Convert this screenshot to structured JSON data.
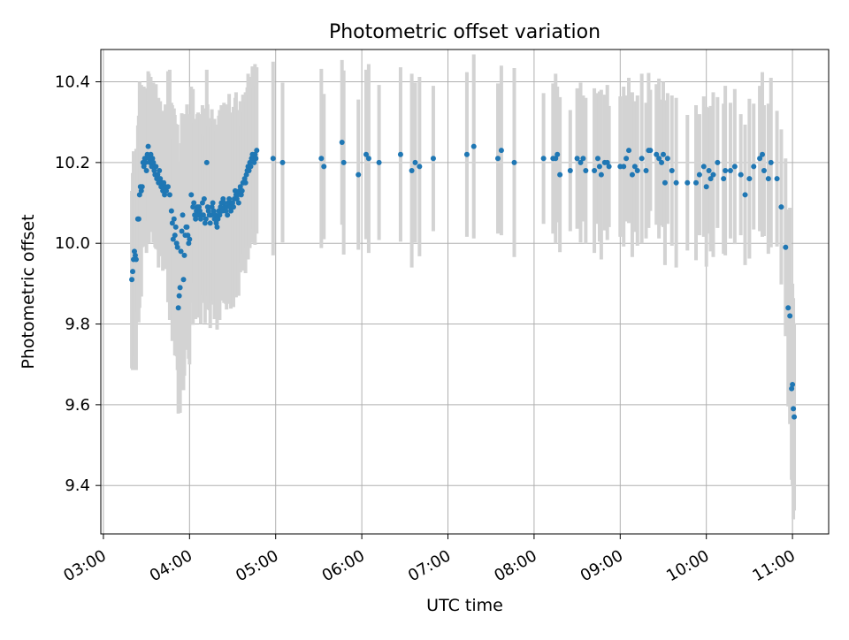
{
  "chart_data": {
    "type": "scatter",
    "title": "Photometric offset variation",
    "xlabel": "UTC time",
    "ylabel": "Photometric offset",
    "x_unit": "hours (UTC)",
    "xlim": [
      2.97,
      11.42
    ],
    "ylim": [
      9.28,
      10.48
    ],
    "grid": true,
    "colors": {
      "marker": "#1f77b4",
      "errorbar": "#d3d3d3",
      "grid": "#b0b0b0"
    },
    "x_ticks": [
      {
        "value": 3,
        "label": "03:00"
      },
      {
        "value": 4,
        "label": "04:00"
      },
      {
        "value": 5,
        "label": "05:00"
      },
      {
        "value": 6,
        "label": "06:00"
      },
      {
        "value": 7,
        "label": "07:00"
      },
      {
        "value": 8,
        "label": "08:00"
      },
      {
        "value": 9,
        "label": "09:00"
      },
      {
        "value": 10,
        "label": "10:00"
      },
      {
        "value": 11,
        "label": "11:00"
      }
    ],
    "y_ticks": [
      {
        "value": 9.4,
        "label": "9.4"
      },
      {
        "value": 9.6,
        "label": "9.6"
      },
      {
        "value": 9.8,
        "label": "9.8"
      },
      {
        "value": 10.0,
        "label": "10.0"
      },
      {
        "value": 10.2,
        "label": "10.2"
      },
      {
        "value": 10.4,
        "label": "10.4"
      }
    ],
    "series": [
      {
        "points": [
          [
            3.33,
            9.91
          ],
          [
            3.34,
            9.93
          ],
          [
            3.35,
            9.96
          ],
          [
            3.36,
            9.98
          ],
          [
            3.37,
            9.97
          ],
          [
            3.38,
            9.96
          ],
          [
            3.4,
            10.06
          ],
          [
            3.41,
            10.06
          ],
          [
            3.42,
            10.12
          ],
          [
            3.43,
            10.14
          ],
          [
            3.44,
            10.13
          ],
          [
            3.45,
            10.14
          ],
          [
            3.46,
            10.2
          ],
          [
            3.47,
            10.19
          ],
          [
            3.48,
            10.21
          ],
          [
            3.49,
            10.2
          ],
          [
            3.5,
            10.18
          ],
          [
            3.51,
            10.22
          ],
          [
            3.52,
            10.24
          ],
          [
            3.53,
            10.21
          ],
          [
            3.54,
            10.2
          ],
          [
            3.55,
            10.22
          ],
          [
            3.56,
            10.19
          ],
          [
            3.57,
            10.21
          ],
          [
            3.58,
            10.2
          ],
          [
            3.59,
            10.18
          ],
          [
            3.6,
            10.17
          ],
          [
            3.61,
            10.19
          ],
          [
            3.62,
            10.16
          ],
          [
            3.63,
            10.17
          ],
          [
            3.64,
            10.15
          ],
          [
            3.65,
            10.18
          ],
          [
            3.66,
            10.16
          ],
          [
            3.67,
            10.14
          ],
          [
            3.68,
            10.15
          ],
          [
            3.69,
            10.13
          ],
          [
            3.7,
            10.15
          ],
          [
            3.71,
            10.12
          ],
          [
            3.72,
            10.14
          ],
          [
            3.73,
            10.13
          ],
          [
            3.75,
            10.14
          ],
          [
            3.77,
            10.12
          ],
          [
            3.79,
            10.08
          ],
          [
            3.8,
            10.05
          ],
          [
            3.81,
            10.01
          ],
          [
            3.82,
            10.06
          ],
          [
            3.83,
            10.02
          ],
          [
            3.84,
            10.04
          ],
          [
            3.85,
            10.0
          ],
          [
            3.86,
            9.99
          ],
          [
            3.87,
            9.84
          ],
          [
            3.88,
            9.87
          ],
          [
            3.89,
            9.89
          ],
          [
            3.9,
            9.98
          ],
          [
            3.91,
            10.03
          ],
          [
            3.92,
            10.07
          ],
          [
            3.93,
            9.91
          ],
          [
            3.94,
            9.97
          ],
          [
            3.95,
            10.02
          ],
          [
            3.96,
            10.04
          ],
          [
            3.97,
            10.04
          ],
          [
            3.98,
            10.02
          ],
          [
            3.99,
            10.0
          ],
          [
            4.0,
            10.01
          ],
          [
            4.02,
            10.12
          ],
          [
            4.04,
            10.09
          ],
          [
            4.05,
            10.1
          ],
          [
            4.06,
            10.07
          ],
          [
            4.07,
            10.06
          ],
          [
            4.08,
            10.08
          ],
          [
            4.09,
            10.09
          ],
          [
            4.1,
            10.07
          ],
          [
            4.11,
            10.09
          ],
          [
            4.12,
            10.08
          ],
          [
            4.13,
            10.06
          ],
          [
            4.14,
            10.07
          ],
          [
            4.15,
            10.1
          ],
          [
            4.16,
            10.07
          ],
          [
            4.17,
            10.11
          ],
          [
            4.18,
            10.05
          ],
          [
            4.19,
            10.06
          ],
          [
            4.2,
            10.2
          ],
          [
            4.21,
            10.09
          ],
          [
            4.22,
            10.08
          ],
          [
            4.23,
            10.07
          ],
          [
            4.24,
            10.05
          ],
          [
            4.25,
            10.07
          ],
          [
            4.26,
            10.09
          ],
          [
            4.27,
            10.1
          ],
          [
            4.28,
            10.08
          ],
          [
            4.29,
            10.06
          ],
          [
            4.3,
            10.07
          ],
          [
            4.31,
            10.05
          ],
          [
            4.32,
            10.04
          ],
          [
            4.33,
            10.06
          ],
          [
            4.34,
            10.08
          ],
          [
            4.35,
            10.07
          ],
          [
            4.36,
            10.09
          ],
          [
            4.37,
            10.1
          ],
          [
            4.38,
            10.08
          ],
          [
            4.39,
            10.11
          ],
          [
            4.4,
            10.1
          ],
          [
            4.41,
            10.09
          ],
          [
            4.42,
            10.08
          ],
          [
            4.43,
            10.09
          ],
          [
            4.44,
            10.07
          ],
          [
            4.45,
            10.1
          ],
          [
            4.46,
            10.11
          ],
          [
            4.47,
            10.09
          ],
          [
            4.48,
            10.08
          ],
          [
            4.49,
            10.1
          ],
          [
            4.5,
            10.1
          ],
          [
            4.51,
            10.09
          ],
          [
            4.52,
            10.11
          ],
          [
            4.53,
            10.13
          ],
          [
            4.54,
            10.12
          ],
          [
            4.55,
            10.11
          ],
          [
            4.56,
            10.12
          ],
          [
            4.57,
            10.1
          ],
          [
            4.58,
            10.13
          ],
          [
            4.59,
            10.14
          ],
          [
            4.6,
            10.12
          ],
          [
            4.61,
            10.13
          ],
          [
            4.62,
            10.15
          ],
          [
            4.63,
            10.15
          ],
          [
            4.64,
            10.16
          ],
          [
            4.65,
            10.15
          ],
          [
            4.66,
            10.17
          ],
          [
            4.67,
            10.18
          ],
          [
            4.68,
            10.19
          ],
          [
            4.69,
            10.18
          ],
          [
            4.7,
            10.2
          ],
          [
            4.71,
            10.19
          ],
          [
            4.72,
            10.21
          ],
          [
            4.73,
            10.22
          ],
          [
            4.74,
            10.21
          ],
          [
            4.75,
            10.2
          ],
          [
            4.76,
            10.22
          ],
          [
            4.77,
            10.21
          ],
          [
            4.78,
            10.23
          ],
          [
            4.97,
            10.21
          ],
          [
            5.08,
            10.2
          ],
          [
            5.53,
            10.21
          ],
          [
            5.56,
            10.19
          ],
          [
            5.77,
            10.25
          ],
          [
            5.79,
            10.2
          ],
          [
            5.96,
            10.17
          ],
          [
            6.05,
            10.22
          ],
          [
            6.08,
            10.21
          ],
          [
            6.2,
            10.2
          ],
          [
            6.45,
            10.22
          ],
          [
            6.58,
            10.18
          ],
          [
            6.62,
            10.2
          ],
          [
            6.67,
            10.19
          ],
          [
            6.83,
            10.21
          ],
          [
            7.22,
            10.22
          ],
          [
            7.3,
            10.24
          ],
          [
            7.58,
            10.21
          ],
          [
            7.62,
            10.23
          ],
          [
            7.77,
            10.2
          ],
          [
            8.11,
            10.21
          ],
          [
            8.22,
            10.21
          ],
          [
            8.25,
            10.21
          ],
          [
            8.27,
            10.22
          ],
          [
            8.3,
            10.17
          ],
          [
            8.42,
            10.18
          ],
          [
            8.5,
            10.21
          ],
          [
            8.54,
            10.2
          ],
          [
            8.57,
            10.21
          ],
          [
            8.6,
            10.18
          ],
          [
            8.7,
            10.18
          ],
          [
            8.74,
            10.21
          ],
          [
            8.76,
            10.19
          ],
          [
            8.78,
            10.17
          ],
          [
            8.82,
            10.2
          ],
          [
            8.85,
            10.2
          ],
          [
            8.87,
            10.19
          ],
          [
            9.0,
            10.19
          ],
          [
            9.04,
            10.19
          ],
          [
            9.07,
            10.21
          ],
          [
            9.1,
            10.23
          ],
          [
            9.14,
            10.17
          ],
          [
            9.17,
            10.19
          ],
          [
            9.2,
            10.18
          ],
          [
            9.25,
            10.21
          ],
          [
            9.3,
            10.18
          ],
          [
            9.33,
            10.23
          ],
          [
            9.35,
            10.23
          ],
          [
            9.42,
            10.22
          ],
          [
            9.45,
            10.21
          ],
          [
            9.48,
            10.2
          ],
          [
            9.5,
            10.22
          ],
          [
            9.52,
            10.15
          ],
          [
            9.55,
            10.21
          ],
          [
            9.6,
            10.18
          ],
          [
            9.65,
            10.15
          ],
          [
            9.78,
            10.15
          ],
          [
            9.88,
            10.15
          ],
          [
            9.92,
            10.17
          ],
          [
            9.97,
            10.19
          ],
          [
            10.0,
            10.14
          ],
          [
            10.03,
            10.18
          ],
          [
            10.05,
            10.16
          ],
          [
            10.08,
            10.17
          ],
          [
            10.13,
            10.2
          ],
          [
            10.2,
            10.16
          ],
          [
            10.22,
            10.18
          ],
          [
            10.28,
            10.18
          ],
          [
            10.33,
            10.19
          ],
          [
            10.4,
            10.17
          ],
          [
            10.45,
            10.12
          ],
          [
            10.5,
            10.16
          ],
          [
            10.55,
            10.19
          ],
          [
            10.62,
            10.21
          ],
          [
            10.65,
            10.22
          ],
          [
            10.67,
            10.18
          ],
          [
            10.72,
            10.16
          ],
          [
            10.75,
            10.2
          ],
          [
            10.82,
            10.16
          ],
          [
            10.87,
            10.09
          ],
          [
            10.92,
            9.99
          ],
          [
            10.95,
            9.84
          ],
          [
            10.97,
            9.82
          ],
          [
            10.99,
            9.64
          ],
          [
            11.0,
            9.65
          ],
          [
            11.01,
            9.59
          ],
          [
            11.02,
            9.57
          ]
        ]
      }
    ]
  }
}
